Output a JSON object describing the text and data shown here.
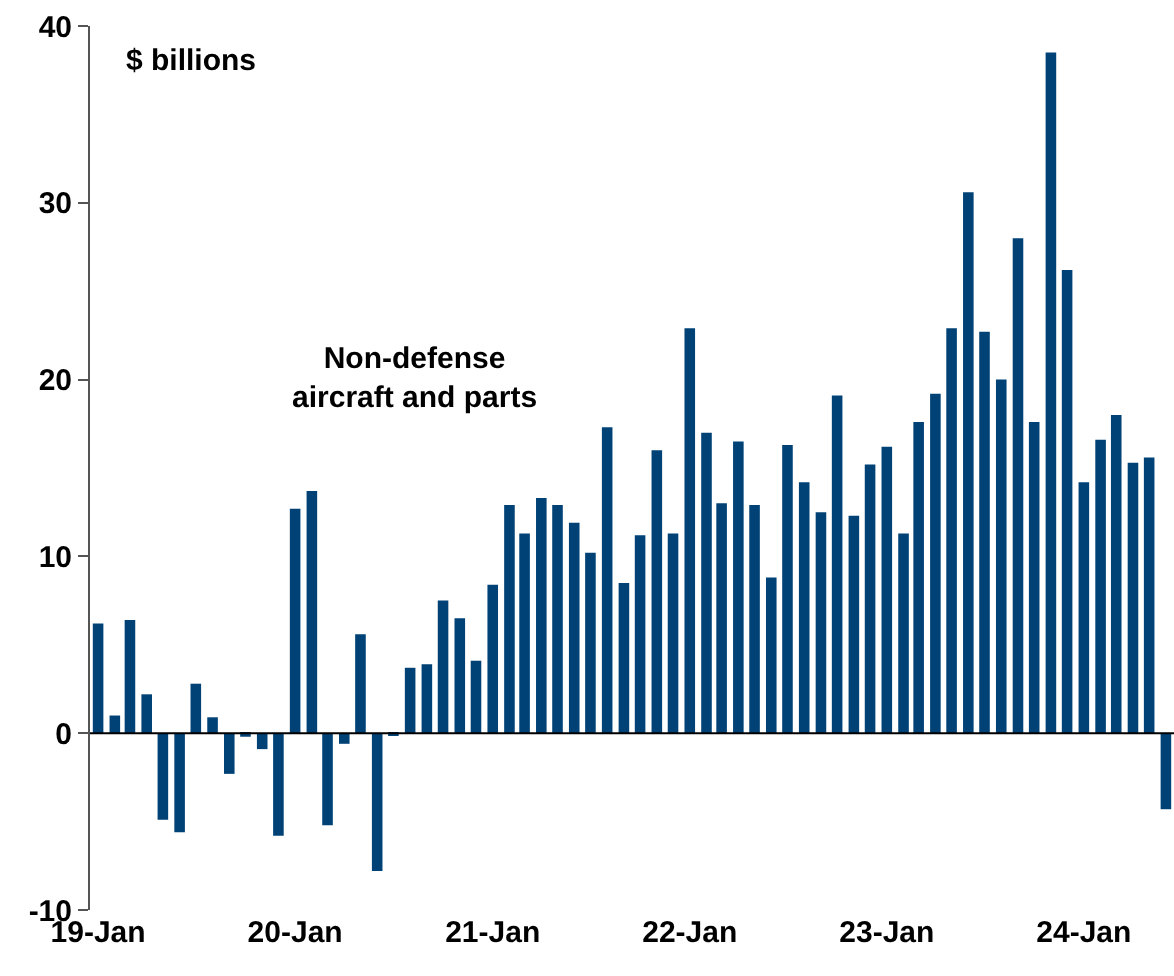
{
  "chart_data": {
    "type": "bar",
    "x": [
      "2019-01",
      "2019-02",
      "2019-03",
      "2019-04",
      "2019-05",
      "2019-06",
      "2019-07",
      "2019-08",
      "2019-09",
      "2019-10",
      "2019-11",
      "2019-12",
      "2020-01",
      "2020-02",
      "2020-03",
      "2020-04",
      "2020-05",
      "2020-06",
      "2020-07",
      "2020-08",
      "2020-09",
      "2020-10",
      "2020-11",
      "2020-12",
      "2021-01",
      "2021-02",
      "2021-03",
      "2021-04",
      "2021-05",
      "2021-06",
      "2021-07",
      "2021-08",
      "2021-09",
      "2021-10",
      "2021-11",
      "2021-12",
      "2022-01",
      "2022-02",
      "2022-03",
      "2022-04",
      "2022-05",
      "2022-06",
      "2022-07",
      "2022-08",
      "2022-09",
      "2022-10",
      "2022-11",
      "2022-12",
      "2023-01",
      "2023-02",
      "2023-03",
      "2023-04",
      "2023-05",
      "2023-06",
      "2023-07",
      "2023-08",
      "2023-09",
      "2023-10",
      "2023-11",
      "2023-12",
      "2024-01",
      "2024-02",
      "2024-03",
      "2024-04",
      "2024-05",
      "2024-06"
    ],
    "series": [
      {
        "color": "#004276",
        "values": [
          6.2,
          1.0,
          6.4,
          2.2,
          -4.9,
          -5.6,
          2.8,
          0.9,
          -2.3,
          -0.2,
          -0.9,
          -5.8,
          12.7,
          13.7,
          -5.2,
          -0.6,
          5.6,
          -7.8,
          -0.1,
          3.7,
          3.9,
          7.5,
          6.5,
          4.1,
          8.4,
          12.9,
          11.3,
          13.3,
          12.9,
          11.9,
          10.2,
          17.3,
          8.5,
          11.2,
          16.0,
          11.3,
          22.9,
          17.0,
          13.0,
          16.5,
          12.9,
          8.8,
          16.3,
          14.2,
          12.5,
          19.1,
          12.3,
          15.2,
          16.2,
          11.3,
          17.6,
          19.2,
          22.9,
          30.6,
          22.7,
          20.0,
          28.0,
          17.6,
          38.5,
          26.2,
          14.2,
          16.6,
          18.0,
          15.3,
          15.6,
          -4.3
        ]
      }
    ],
    "xlim": [
      "2018-12-17",
      "2024-06-16"
    ],
    "ref_lines": [
      {
        "axis": "y",
        "value": 0,
        "color": "#000000"
      }
    ],
    "xticks": [
      {
        "value": "2019-01-01",
        "label": "19-Jan"
      },
      {
        "value": "2020-01-01",
        "label": "20-Jan"
      },
      {
        "value": "2021-01-01",
        "label": "21-Jan"
      },
      {
        "value": "2022-01-01",
        "label": "22-Jan"
      },
      {
        "value": "2023-01-01",
        "label": "23-Jan"
      },
      {
        "value": "2024-01-01",
        "label": "24-Jan"
      }
    ],
    "ylim": [
      -10,
      40
    ],
    "yticks": [
      -10,
      0,
      10,
      20,
      30,
      40
    ],
    "grid": false,
    "annotations": [
      "$ billions",
      "Non-defense\naircraft and parts"
    ]
  }
}
